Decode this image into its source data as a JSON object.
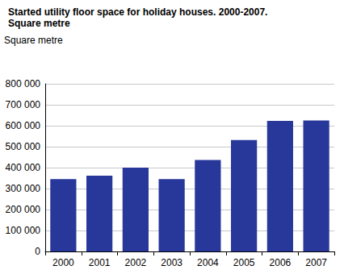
{
  "chart_data": {
    "type": "bar",
    "title": "Started utility floor space for holiday houses. 2000-2007.",
    "subtitle": "Square metre",
    "y_label": "Square metre",
    "categories": [
      "2000",
      "2001",
      "2002",
      "2003",
      "2004",
      "2005",
      "2006",
      "2007"
    ],
    "values": [
      345000,
      362000,
      400000,
      345000,
      437000,
      532000,
      623000,
      625000
    ],
    "color": "#28389a",
    "ylim": [
      0,
      800000
    ],
    "yticks": [
      0,
      {
        "value": 100000,
        "label": "100 000"
      },
      {
        "value": 200000,
        "label": "200 000"
      },
      {
        "value": 300000,
        "label": "300 000"
      },
      {
        "value": 400000,
        "label": "400 000"
      },
      {
        "value": 500000,
        "label": "500 000"
      },
      {
        "value": 600000,
        "label": "600 000"
      },
      {
        "value": 700000,
        "label": "700 000"
      },
      {
        "value": 800000,
        "label": "800 000"
      }
    ],
    "grid": true
  }
}
